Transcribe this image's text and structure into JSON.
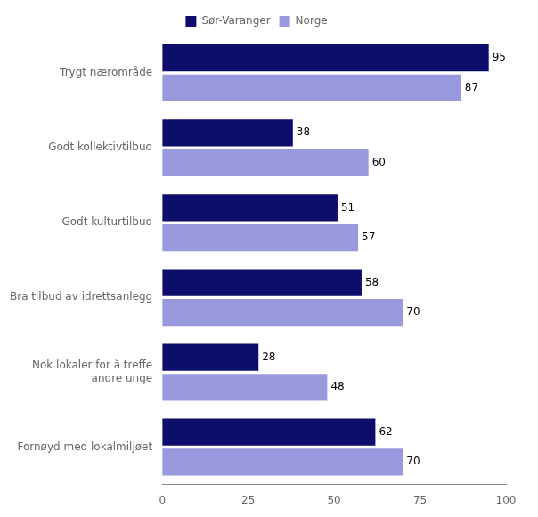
{
  "chart_data": {
    "type": "bar",
    "orientation": "horizontal",
    "categories": [
      "Trygt nærområde",
      "Godt kollektivtilbud",
      "Godt kulturtilbud",
      "Bra tilbud av idrettsanlegg",
      "Nok lokaler for å treffe\nandre unge",
      "Fornøyd med lokalmiljøet"
    ],
    "series": [
      {
        "name": "Sør-Varanger",
        "color": "#0d0d6b",
        "values": [
          95,
          38,
          51,
          58,
          28,
          62
        ]
      },
      {
        "name": "Norge",
        "color": "#9999dd",
        "values": [
          87,
          60,
          57,
          70,
          48,
          70
        ]
      }
    ],
    "xlim": [
      0,
      100
    ],
    "xticks": [
      0,
      25,
      50,
      75,
      100
    ],
    "grid": false,
    "data_labels": true,
    "legend": "top"
  }
}
